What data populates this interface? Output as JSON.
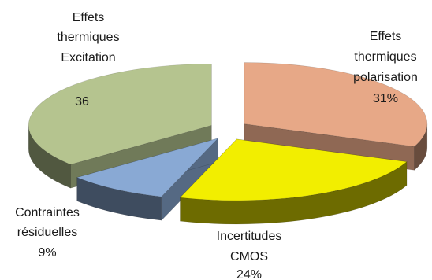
{
  "chart_data": {
    "type": "pie",
    "title": "",
    "categories": [
      "Effets thermiques Excitation",
      "Effets thermiques polarisation",
      "Incertitudes CMOS",
      "Contraintes résiduelles"
    ],
    "values": [
      36,
      31,
      24,
      9
    ],
    "data_labels": [
      "36",
      "31%",
      "24%",
      "9%"
    ],
    "colors": {
      "excitation": "#b5c48f",
      "polarisation": "#e7a887",
      "cmos": "#f2ee00",
      "residuelles": "#89a9d4"
    },
    "legend": "none",
    "style": "3d-exploded",
    "labels": {
      "excitation": [
        "Effets",
        "thermiques",
        "Excitation"
      ],
      "excitation_value": "36",
      "polarisation": [
        "Effets",
        "thermiques",
        "polarisation"
      ],
      "polarisation_value": "31%",
      "cmos": [
        "Incertitudes",
        "CMOS"
      ],
      "cmos_value": "24%",
      "residuelles": [
        "Contraintes",
        "résiduelles"
      ],
      "residuelles_value": "9%"
    }
  }
}
